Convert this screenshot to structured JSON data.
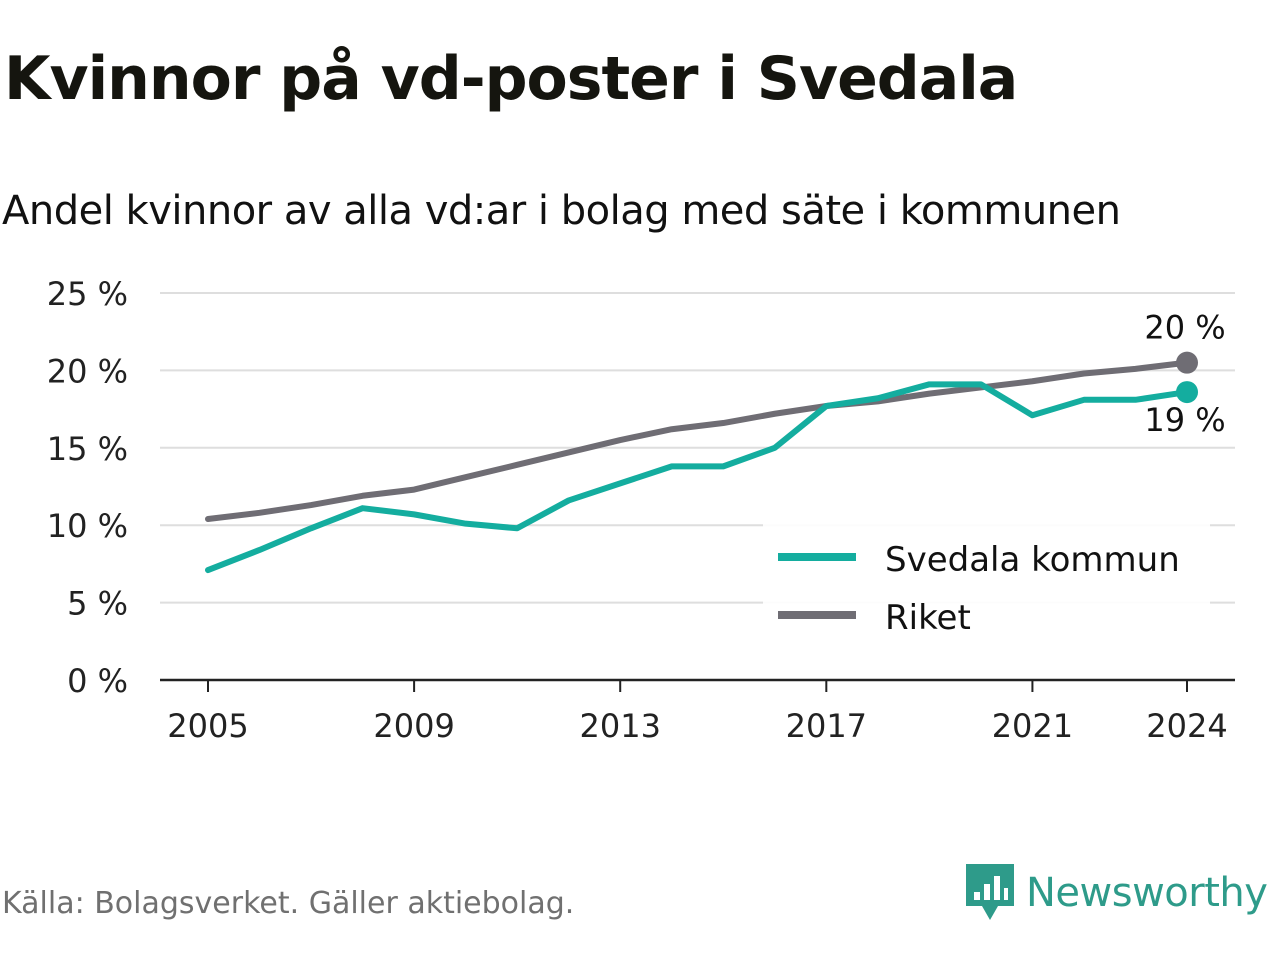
{
  "title": "Kvinnor på vd-poster i Svedala",
  "subtitle": "Andel kvinnor av alla vd:ar i bolag med säte i kommunen",
  "source": "Källa: Bolagsverket. Gäller aktiebolag.",
  "brand": {
    "name": "Newsworthy",
    "icon": "newsworthy-logo-icon",
    "color": "#2e9b8a"
  },
  "colors": {
    "svedala": "#14ad9f",
    "riket": "#6f6d74",
    "grid": "#dedede",
    "axis": "#222222"
  },
  "chart_data": {
    "type": "line",
    "x": [
      2005,
      2006,
      2007,
      2008,
      2009,
      2010,
      2011,
      2012,
      2013,
      2014,
      2015,
      2016,
      2017,
      2018,
      2019,
      2020,
      2021,
      2022,
      2023,
      2024
    ],
    "x_ticks": [
      "2005",
      "2009",
      "2013",
      "2017",
      "2021",
      "2024"
    ],
    "y_ticks": [
      "0 %",
      "5 %",
      "10 %",
      "15 %",
      "20 %",
      "25 %"
    ],
    "ylim": [
      0,
      25
    ],
    "grid": true,
    "legend_position": "bottom-right",
    "series": [
      {
        "name": "Svedala kommun",
        "color": "#14ad9f",
        "values": [
          7.1,
          8.4,
          9.8,
          11.1,
          10.7,
          10.1,
          9.8,
          11.6,
          12.7,
          13.8,
          13.8,
          15.0,
          17.7,
          18.2,
          19.1,
          19.1,
          17.1,
          18.1,
          18.1,
          18.6
        ],
        "end_label": "19 %"
      },
      {
        "name": "Riket",
        "color": "#6f6d74",
        "values": [
          10.4,
          10.8,
          11.3,
          11.9,
          12.3,
          13.1,
          13.9,
          14.7,
          15.5,
          16.2,
          16.6,
          17.2,
          17.7,
          18.0,
          18.5,
          18.9,
          19.3,
          19.8,
          20.1,
          20.5
        ],
        "end_label": "20 %"
      }
    ]
  }
}
